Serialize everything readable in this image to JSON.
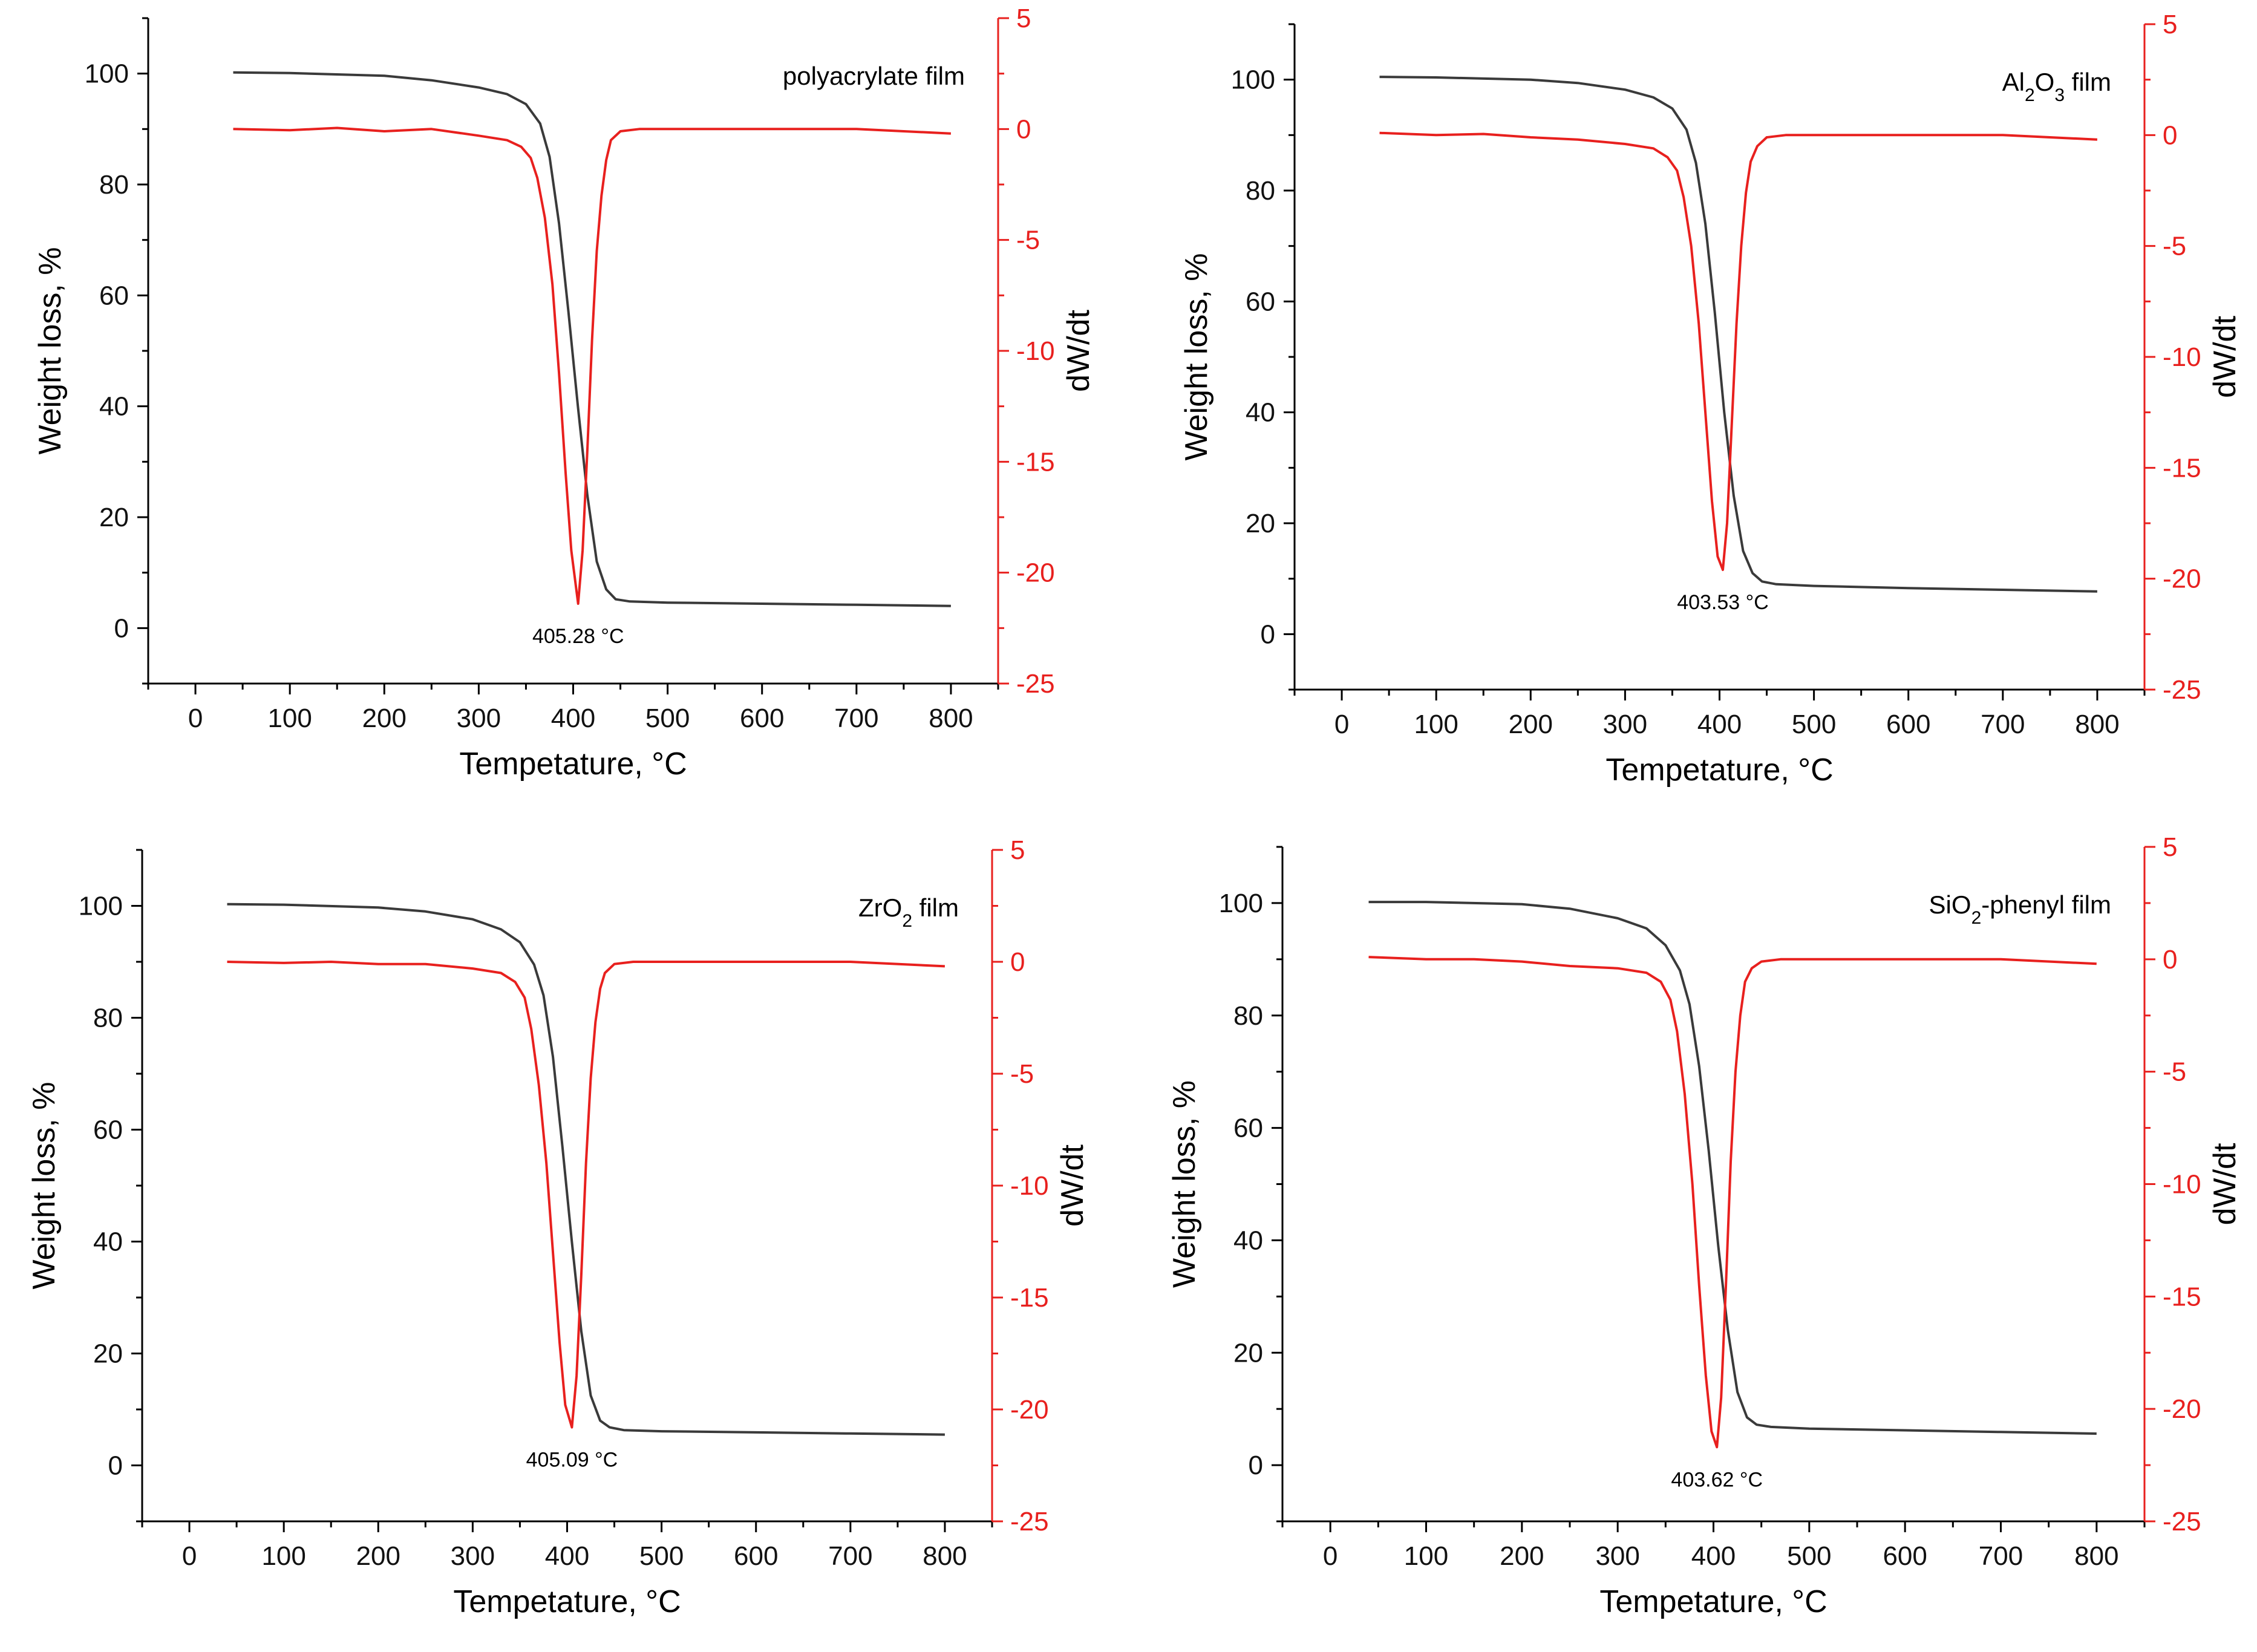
{
  "chart_data": [
    {
      "type": "line",
      "sample_label": "polyacrylate film",
      "sample_label_parts": [
        {
          "t": "polyacrylate film"
        }
      ],
      "xlabel": "Tempetature, °C",
      "ylabel_left": "Weight loss, %",
      "ylabel_right": "dW/dt",
      "xlim": [
        -50,
        850
      ],
      "ylim_left": [
        -10,
        110
      ],
      "ylim_right": [
        -25,
        5
      ],
      "x_ticks": [
        0,
        100,
        200,
        300,
        400,
        500,
        600,
        700,
        800
      ],
      "y_left_ticks": [
        0,
        20,
        40,
        60,
        80,
        100
      ],
      "y_right_ticks": [
        5,
        0,
        -5,
        -10,
        -15,
        -20,
        -25
      ],
      "peak_annotation": "405.28 °C",
      "peak_temperature": 405.28,
      "series": [
        {
          "name": "Weight loss",
          "axis": "left",
          "color": "#3a3a3a",
          "x": [
            40,
            100,
            200,
            250,
            300,
            330,
            350,
            365,
            375,
            385,
            395,
            405,
            415,
            425,
            435,
            445,
            460,
            500,
            600,
            700,
            800
          ],
          "y": [
            100.2,
            100.1,
            99.6,
            98.8,
            97.5,
            96.3,
            94.5,
            91.0,
            85.0,
            73.0,
            57.0,
            40.0,
            24.0,
            12.0,
            7.0,
            5.2,
            4.8,
            4.6,
            4.4,
            4.2,
            4.0
          ]
        },
        {
          "name": "dW/dt",
          "axis": "right",
          "color": "#e8201e",
          "x": [
            40,
            100,
            150,
            200,
            250,
            300,
            330,
            345,
            355,
            362,
            370,
            378,
            385,
            392,
            398,
            405.28,
            410,
            415,
            420,
            425,
            430,
            435,
            440,
            450,
            470,
            500,
            600,
            700,
            800
          ],
          "y": [
            0,
            -0.05,
            0.05,
            -0.1,
            0,
            -0.3,
            -0.5,
            -0.8,
            -1.3,
            -2.2,
            -4.0,
            -7.0,
            -11.0,
            -15.5,
            -19.0,
            -21.4,
            -19.0,
            -14.5,
            -9.5,
            -5.5,
            -3.0,
            -1.4,
            -0.5,
            -0.1,
            0,
            0,
            0,
            0,
            -0.2
          ]
        }
      ]
    },
    {
      "type": "line",
      "sample_label": "Al2O3 film",
      "sample_label_parts": [
        {
          "t": "Al"
        },
        {
          "t": "2",
          "sub": true
        },
        {
          "t": "O"
        },
        {
          "t": "3",
          "sub": true
        },
        {
          "t": " film"
        }
      ],
      "xlabel": "Tempetature, °C",
      "ylabel_left": "Weight loss, %",
      "ylabel_right": "dW/dt",
      "xlim": [
        -50,
        850
      ],
      "ylim_left": [
        -10,
        110
      ],
      "ylim_right": [
        -25,
        5
      ],
      "x_ticks": [
        0,
        100,
        200,
        300,
        400,
        500,
        600,
        700,
        800
      ],
      "y_left_ticks": [
        0,
        20,
        40,
        60,
        80,
        100
      ],
      "y_right_ticks": [
        5,
        0,
        -5,
        -10,
        -15,
        -20,
        -25
      ],
      "peak_annotation": "403.53 °C",
      "peak_temperature": 403.53,
      "series": [
        {
          "name": "Weight loss",
          "axis": "left",
          "color": "#3a3a3a",
          "x": [
            40,
            100,
            200,
            250,
            300,
            330,
            350,
            365,
            375,
            385,
            395,
            405,
            415,
            425,
            435,
            445,
            460,
            500,
            600,
            700,
            800
          ],
          "y": [
            100.5,
            100.4,
            100.0,
            99.4,
            98.2,
            96.8,
            94.8,
            91.0,
            85.0,
            74.0,
            58.0,
            40.0,
            25.0,
            15.0,
            11.0,
            9.5,
            9.0,
            8.7,
            8.3,
            8.0,
            7.7
          ]
        },
        {
          "name": "dW/dt",
          "axis": "right",
          "color": "#e8201e",
          "x": [
            40,
            100,
            150,
            200,
            250,
            300,
            330,
            345,
            355,
            362,
            370,
            378,
            385,
            392,
            398,
            403.53,
            408,
            413,
            418,
            423,
            428,
            433,
            440,
            450,
            470,
            500,
            600,
            700,
            800
          ],
          "y": [
            0.1,
            0,
            0.05,
            -0.1,
            -0.2,
            -0.4,
            -0.6,
            -1.0,
            -1.6,
            -2.8,
            -5.0,
            -8.5,
            -12.5,
            -16.5,
            -19.0,
            -19.6,
            -17.5,
            -13.0,
            -8.5,
            -5.0,
            -2.6,
            -1.2,
            -0.5,
            -0.1,
            0,
            0,
            0,
            0,
            -0.2
          ]
        }
      ]
    },
    {
      "type": "line",
      "sample_label": "ZrO2 film",
      "sample_label_parts": [
        {
          "t": "ZrO"
        },
        {
          "t": "2",
          "sub": true
        },
        {
          "t": " film"
        }
      ],
      "xlabel": "Tempetature, °C",
      "ylabel_left": "Weight loss, %",
      "ylabel_right": "dW/dt",
      "xlim": [
        -50,
        850
      ],
      "ylim_left": [
        -10,
        110
      ],
      "ylim_right": [
        -25,
        5
      ],
      "x_ticks": [
        0,
        100,
        200,
        300,
        400,
        500,
        600,
        700,
        800
      ],
      "y_left_ticks": [
        0,
        20,
        40,
        60,
        80,
        100
      ],
      "y_right_ticks": [
        5,
        0,
        -5,
        -10,
        -15,
        -20,
        -25
      ],
      "peak_annotation": "405.09 °C",
      "peak_temperature": 405.09,
      "series": [
        {
          "name": "Weight loss",
          "axis": "left",
          "color": "#3a3a3a",
          "x": [
            40,
            100,
            200,
            250,
            300,
            330,
            350,
            365,
            375,
            385,
            395,
            405,
            415,
            425,
            435,
            445,
            460,
            500,
            600,
            700,
            800
          ],
          "y": [
            100.3,
            100.2,
            99.7,
            99.0,
            97.6,
            95.8,
            93.5,
            89.5,
            84.0,
            73.0,
            57.0,
            40.0,
            24.0,
            12.5,
            8.0,
            6.8,
            6.3,
            6.1,
            5.9,
            5.7,
            5.5
          ]
        },
        {
          "name": "dW/dt",
          "axis": "right",
          "color": "#e8201e",
          "x": [
            40,
            100,
            150,
            200,
            250,
            300,
            330,
            345,
            355,
            362,
            370,
            378,
            385,
            392,
            398,
            405.09,
            410,
            415,
            420,
            425,
            430,
            435,
            440,
            450,
            470,
            500,
            600,
            700,
            800
          ],
          "y": [
            0,
            -0.05,
            0,
            -0.1,
            -0.1,
            -0.3,
            -0.5,
            -0.9,
            -1.6,
            -3.0,
            -5.5,
            -9.0,
            -13.0,
            -17.0,
            -19.8,
            -20.8,
            -18.5,
            -14.0,
            -9.0,
            -5.2,
            -2.7,
            -1.2,
            -0.5,
            -0.1,
            0,
            0,
            0,
            0,
            -0.2
          ]
        }
      ]
    },
    {
      "type": "line",
      "sample_label": "SiO2-phenyl film",
      "sample_label_parts": [
        {
          "t": "SiO"
        },
        {
          "t": "2",
          "sub": true
        },
        {
          "t": "-phenyl film"
        }
      ],
      "xlabel": "Tempetature, °C",
      "ylabel_left": "Weight loss, %",
      "ylabel_right": "dW/dt",
      "xlim": [
        -50,
        850
      ],
      "ylim_left": [
        -10,
        110
      ],
      "ylim_right": [
        -25,
        5
      ],
      "x_ticks": [
        0,
        100,
        200,
        300,
        400,
        500,
        600,
        700,
        800
      ],
      "y_left_ticks": [
        0,
        20,
        40,
        60,
        80,
        100
      ],
      "y_right_ticks": [
        5,
        0,
        -5,
        -10,
        -15,
        -20,
        -25
      ],
      "peak_annotation": "403.62 °C",
      "peak_temperature": 403.62,
      "series": [
        {
          "name": "Weight loss",
          "axis": "left",
          "color": "#3a3a3a",
          "x": [
            40,
            100,
            200,
            250,
            300,
            330,
            350,
            365,
            375,
            385,
            395,
            405,
            415,
            425,
            435,
            445,
            460,
            500,
            600,
            700,
            800
          ],
          "y": [
            100.2,
            100.2,
            99.8,
            99.0,
            97.3,
            95.5,
            92.5,
            88.0,
            82.0,
            71.0,
            56.0,
            39.0,
            24.0,
            13.0,
            8.5,
            7.2,
            6.8,
            6.5,
            6.2,
            5.9,
            5.6
          ]
        },
        {
          "name": "dW/dt",
          "axis": "right",
          "color": "#e8201e",
          "x": [
            40,
            100,
            150,
            200,
            250,
            300,
            330,
            345,
            355,
            362,
            370,
            378,
            385,
            392,
            398,
            403.62,
            408,
            413,
            418,
            423,
            428,
            433,
            440,
            450,
            470,
            500,
            600,
            700,
            800
          ],
          "y": [
            0.1,
            0,
            0,
            -0.1,
            -0.3,
            -0.4,
            -0.6,
            -1.0,
            -1.8,
            -3.2,
            -6.0,
            -10.0,
            -14.5,
            -18.5,
            -21.0,
            -21.7,
            -19.5,
            -14.5,
            -9.0,
            -5.0,
            -2.5,
            -1.0,
            -0.4,
            -0.1,
            0,
            0,
            0,
            0,
            -0.2
          ]
        }
      ]
    }
  ]
}
